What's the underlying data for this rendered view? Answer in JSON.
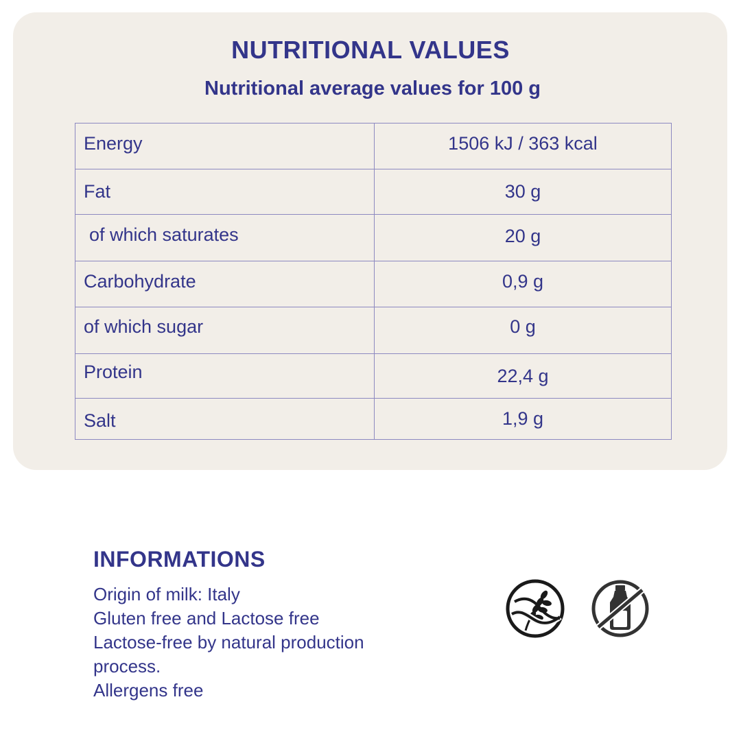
{
  "nutrition": {
    "title": "NUTRITIONAL VALUES",
    "subtitle": "Nutritional average values for 100 g",
    "rows": [
      {
        "label": "Energy",
        "value": "1506 kJ / 363 kcal"
      },
      {
        "label": " of which saturates_placeholder",
        "value": ""
      }
    ]
  }
}
